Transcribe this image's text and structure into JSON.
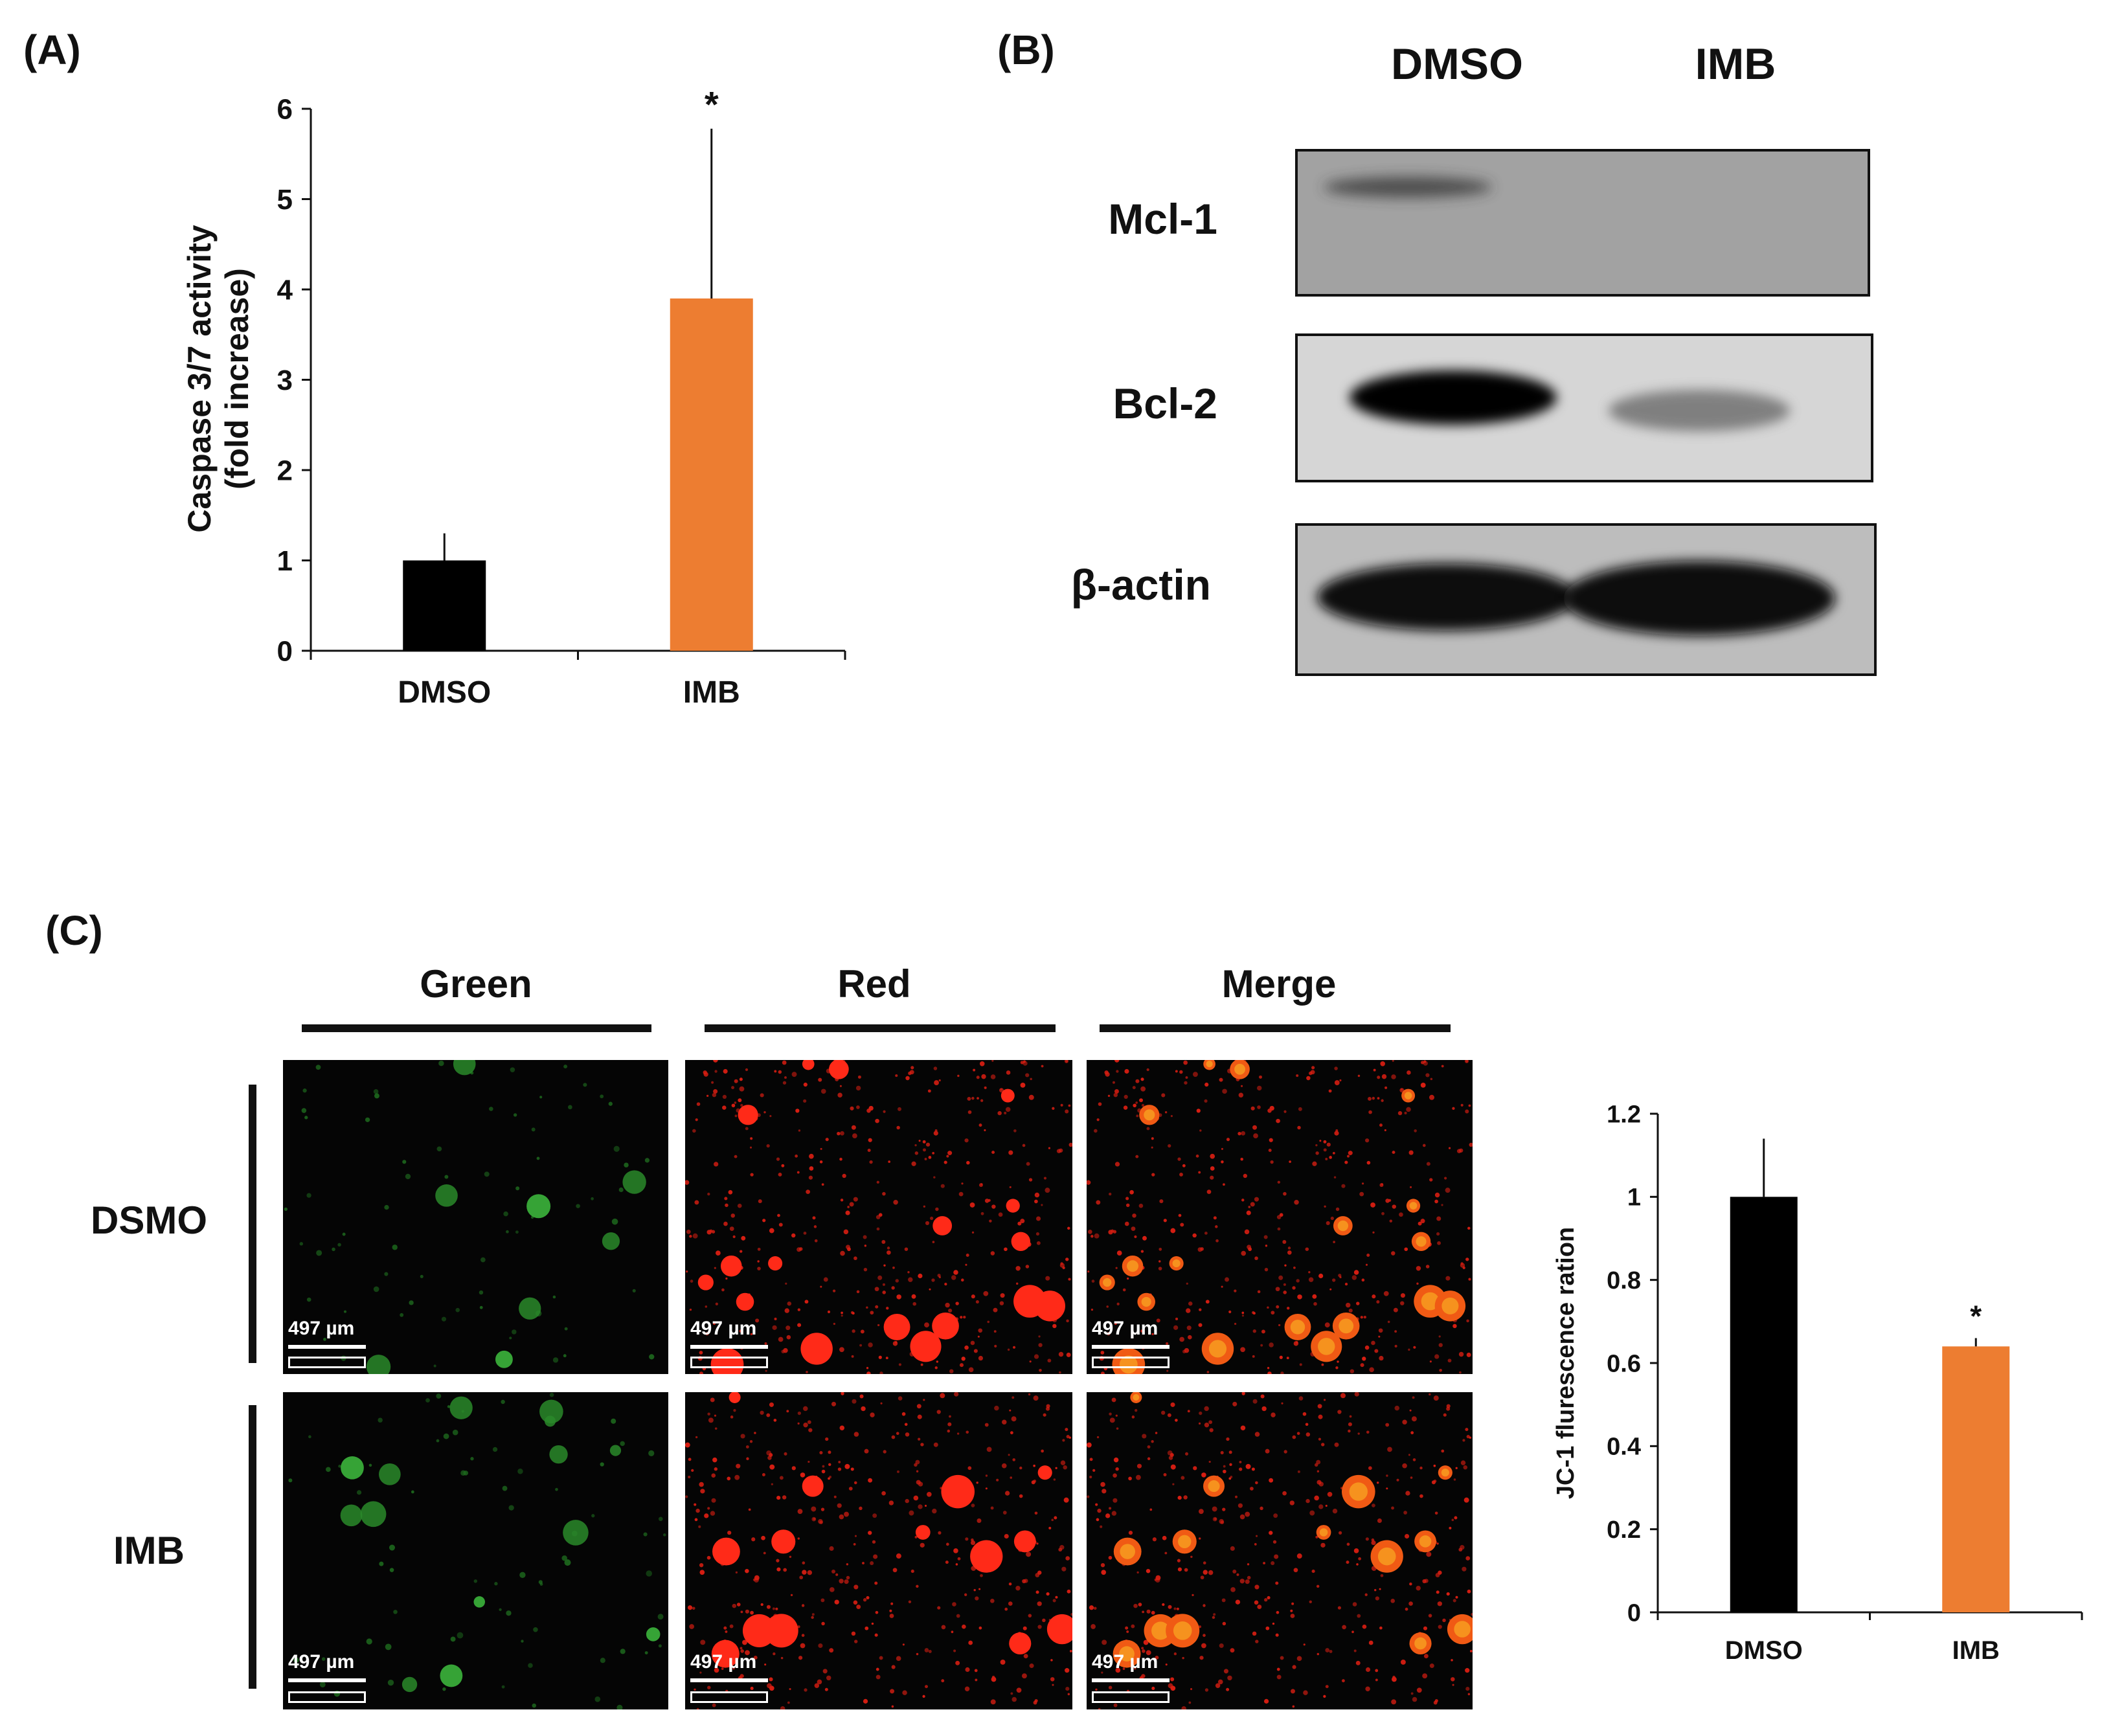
{
  "panels": {
    "a": "(A)",
    "b": "(B)",
    "c": "(C)"
  },
  "panel_a": {
    "ylabel_line1": "Caspase 3/7 activity",
    "ylabel_line2": "(fold increase)",
    "yticks": [
      "0",
      "1",
      "2",
      "3",
      "4",
      "5",
      "6"
    ],
    "categories": [
      "DMSO",
      "IMB"
    ],
    "significance": "*"
  },
  "panel_b": {
    "lanes": [
      "DMSO",
      "IMB"
    ],
    "rows": [
      {
        "label": "Mcl-1",
        "intensities": [
          0.35,
          0.0
        ]
      },
      {
        "label": "Bcl-2",
        "intensities": [
          1.0,
          0.45
        ]
      },
      {
        "label": "β-actin",
        "intensities": [
          1.0,
          1.0
        ]
      }
    ]
  },
  "panel_c": {
    "columns": [
      "Green",
      "Red",
      "Merge"
    ],
    "rows": [
      "DSMO",
      "IMB"
    ],
    "scale_label": "497 µm",
    "scale_box_text": "497 µm",
    "ylabel": "JC-1 flurescence ration",
    "yticks": [
      "0",
      "0.2",
      "0.4",
      "0.6",
      "0.8",
      "1",
      "1.2"
    ],
    "categories": [
      "DMSO",
      "IMB"
    ],
    "significance": "*"
  },
  "colors": {
    "control": "#000000",
    "treatment": "#ED7D31",
    "axis": "#111111"
  },
  "chart_data": [
    {
      "type": "bar",
      "categories": [
        "DMSO",
        "IMB"
      ],
      "values": [
        1.0,
        3.9
      ],
      "errors": [
        0.3,
        1.88
      ],
      "ylabel": "Caspase 3/7 activity (fold increase)",
      "ylim": [
        0,
        6
      ],
      "yticks": [
        0,
        1,
        2,
        3,
        4,
        5,
        6
      ],
      "annotations": [
        {
          "category": "IMB",
          "text": "*"
        }
      ],
      "grid": false,
      "legend": "none"
    },
    {
      "type": "bar",
      "categories": [
        "DMSO",
        "IMB"
      ],
      "values": [
        1.0,
        0.64
      ],
      "errors": [
        0.14,
        0.02
      ],
      "ylabel": "JC-1 flurescence ration",
      "ylim": [
        0,
        1.2
      ],
      "yticks": [
        0,
        0.2,
        0.4,
        0.6,
        0.8,
        1,
        1.2
      ],
      "annotations": [
        {
          "category": "IMB",
          "text": "*"
        }
      ],
      "grid": false,
      "legend": "none"
    }
  ]
}
